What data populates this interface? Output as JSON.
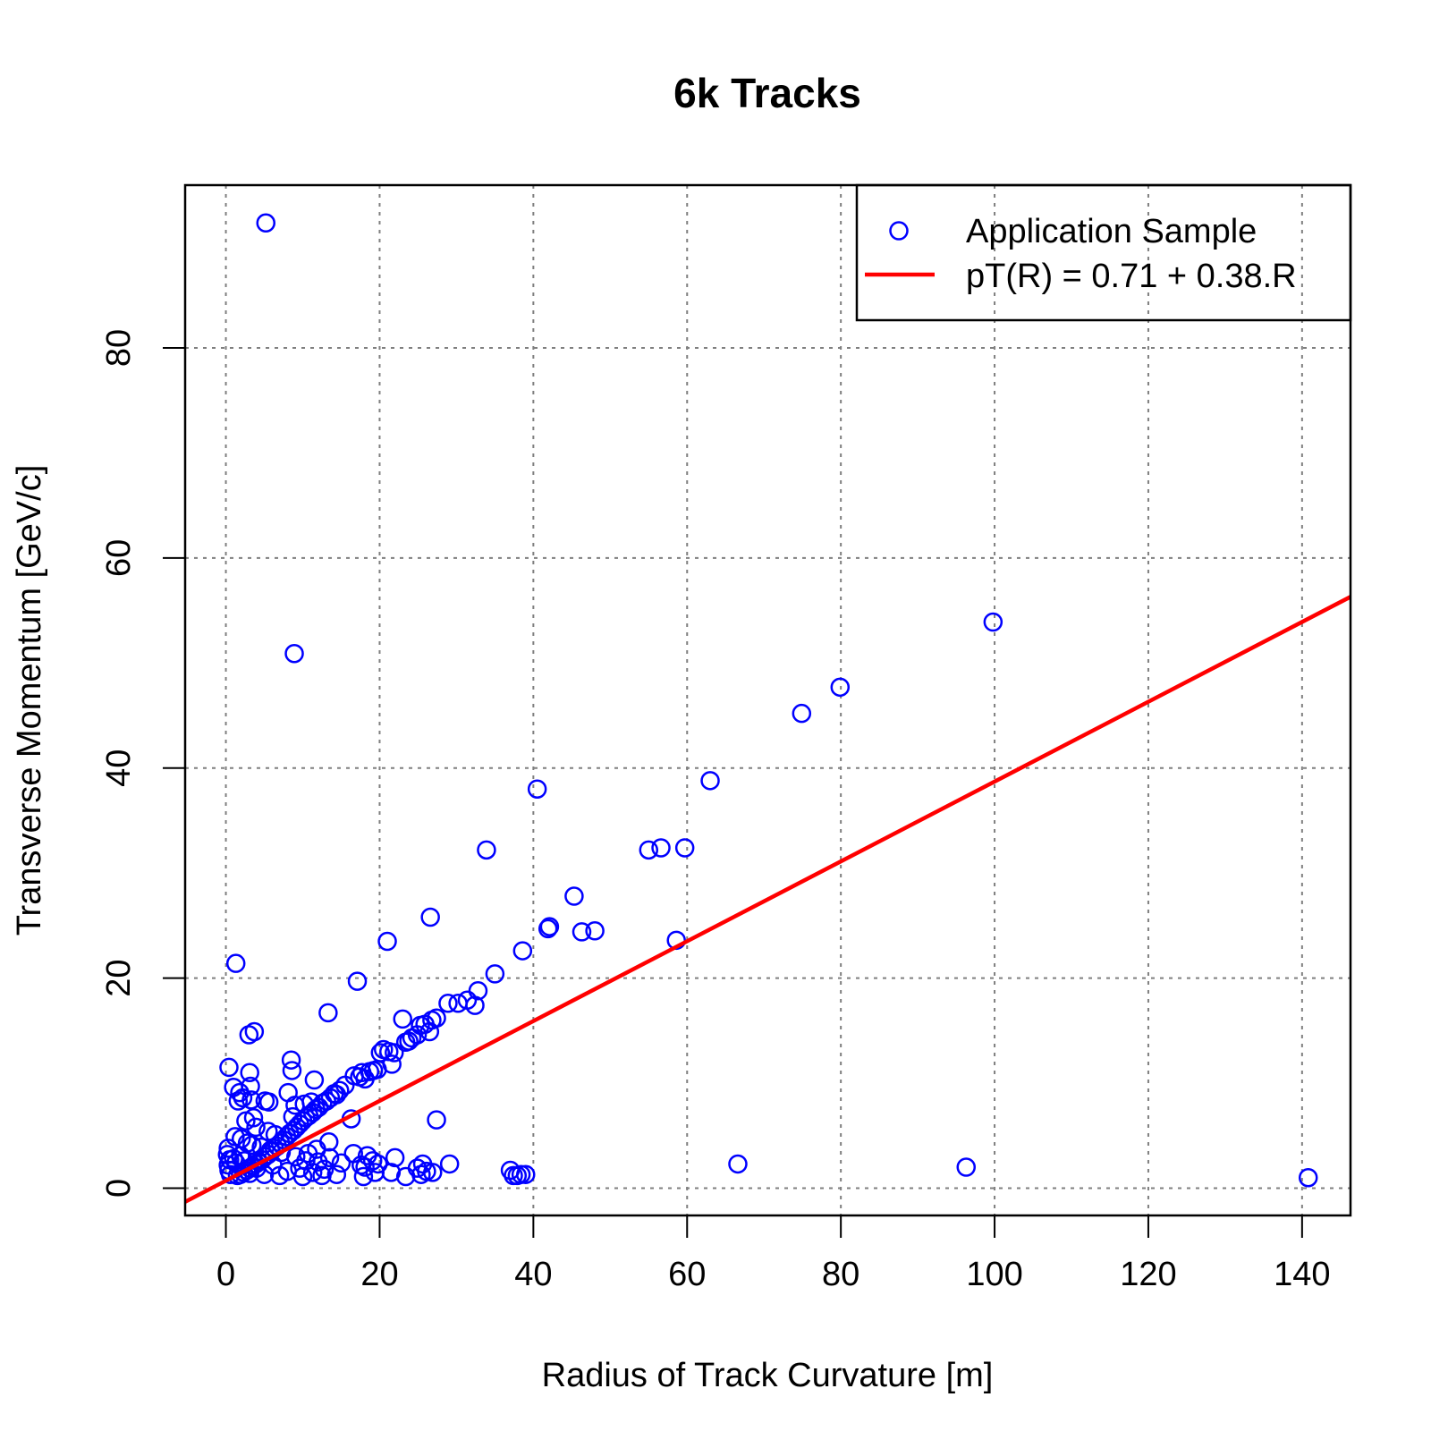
{
  "chart_data": {
    "type": "scatter",
    "title": "6k Tracks",
    "xlabel": "Radius of Track Curvature [m]",
    "ylabel": "Transverse Momentum [GeV/c]",
    "xlim": [
      -5.3,
      146.3
    ],
    "ylim": [
      -2.6,
      95.5
    ],
    "x_ticks": [
      0,
      20,
      40,
      60,
      80,
      100,
      120,
      140
    ],
    "y_ticks": [
      0,
      20,
      40,
      60,
      80
    ],
    "x_tick_labels": [
      "0",
      "20",
      "40",
      "60",
      "80",
      "100",
      "120",
      "140"
    ],
    "y_tick_labels": [
      "0",
      "20",
      "40",
      "60",
      "80"
    ],
    "grid": true,
    "legend_position": "top-right",
    "colors": {
      "points": "#0000ff",
      "fit": "#ff0000",
      "grid": "#7f7f7f"
    },
    "series": [
      {
        "name": "Application Sample",
        "kind": "points",
        "points": [
          [
            5.2,
            91.9
          ],
          [
            8.9,
            50.9
          ],
          [
            99.8,
            53.9
          ],
          [
            79.9,
            47.7
          ],
          [
            74.9,
            45.2
          ],
          [
            63.0,
            38.8
          ],
          [
            40.5,
            38.0
          ],
          [
            33.9,
            32.2
          ],
          [
            55.0,
            32.2
          ],
          [
            56.6,
            32.4
          ],
          [
            59.7,
            32.4
          ],
          [
            45.3,
            27.8
          ],
          [
            41.9,
            24.7
          ],
          [
            42.1,
            24.9
          ],
          [
            46.3,
            24.4
          ],
          [
            48.0,
            24.5
          ],
          [
            26.6,
            25.8
          ],
          [
            21.0,
            23.5
          ],
          [
            58.6,
            23.6
          ],
          [
            38.6,
            22.6
          ],
          [
            35.0,
            20.4
          ],
          [
            1.3,
            21.4
          ],
          [
            17.1,
            19.7
          ],
          [
            32.8,
            18.8
          ],
          [
            32.4,
            17.4
          ],
          [
            28.9,
            17.6
          ],
          [
            30.2,
            17.6
          ],
          [
            31.4,
            17.9
          ],
          [
            13.3,
            16.7
          ],
          [
            23.0,
            16.1
          ],
          [
            27.4,
            16.2
          ],
          [
            26.8,
            16.0
          ],
          [
            25.9,
            15.6
          ],
          [
            25.3,
            15.5
          ],
          [
            26.5,
            14.9
          ],
          [
            24.9,
            14.6
          ],
          [
            24.2,
            14.3
          ],
          [
            23.8,
            14.0
          ],
          [
            23.4,
            13.9
          ],
          [
            3.7,
            14.9
          ],
          [
            3.0,
            14.6
          ],
          [
            20.5,
            13.2
          ],
          [
            21.2,
            13.0
          ],
          [
            21.9,
            12.9
          ],
          [
            20.1,
            12.9
          ],
          [
            21.6,
            11.8
          ],
          [
            8.5,
            12.2
          ],
          [
            8.6,
            11.2
          ],
          [
            0.4,
            11.5
          ],
          [
            3.1,
            11.0
          ],
          [
            11.5,
            10.3
          ],
          [
            16.7,
            10.7
          ],
          [
            19.2,
            11.2
          ],
          [
            19.7,
            11.3
          ],
          [
            18.7,
            11.1
          ],
          [
            17.7,
            11.0
          ],
          [
            17.4,
            10.6
          ],
          [
            18.1,
            10.4
          ],
          [
            3.2,
            9.7
          ],
          [
            1.0,
            9.6
          ],
          [
            1.8,
            9.1
          ],
          [
            15.5,
            9.8
          ],
          [
            14.8,
            9.3
          ],
          [
            14.4,
            8.9
          ],
          [
            14.1,
            9.0
          ],
          [
            13.6,
            8.6
          ],
          [
            13.1,
            8.3
          ],
          [
            12.6,
            8.1
          ],
          [
            12.1,
            7.7
          ],
          [
            11.7,
            7.5
          ],
          [
            11.3,
            7.2
          ],
          [
            10.8,
            6.9
          ],
          [
            10.4,
            6.7
          ],
          [
            10.0,
            6.4
          ],
          [
            9.6,
            6.1
          ],
          [
            9.2,
            5.8
          ],
          [
            8.8,
            5.5
          ],
          [
            8.3,
            5.2
          ],
          [
            7.9,
            4.9
          ],
          [
            7.5,
            4.6
          ],
          [
            7.1,
            4.3
          ],
          [
            6.7,
            4.0
          ],
          [
            6.3,
            3.8
          ],
          [
            5.9,
            3.5
          ],
          [
            5.5,
            3.2
          ],
          [
            5.1,
            3.0
          ],
          [
            4.7,
            2.7
          ],
          [
            4.3,
            2.5
          ],
          [
            3.9,
            2.3
          ],
          [
            3.5,
            2.1
          ],
          [
            3.1,
            1.9
          ],
          [
            2.7,
            1.7
          ],
          [
            2.3,
            1.5
          ],
          [
            1.9,
            1.3
          ],
          [
            1.5,
            1.2
          ],
          [
            8.1,
            9.1
          ],
          [
            1.6,
            8.3
          ],
          [
            2.2,
            8.6
          ],
          [
            3.3,
            8.4
          ],
          [
            5.1,
            8.3
          ],
          [
            5.6,
            8.2
          ],
          [
            9.0,
            7.9
          ],
          [
            10.2,
            8.0
          ],
          [
            11.1,
            8.2
          ],
          [
            3.6,
            6.7
          ],
          [
            2.6,
            6.4
          ],
          [
            3.9,
            5.8
          ],
          [
            5.5,
            5.4
          ],
          [
            6.4,
            5.1
          ],
          [
            8.7,
            6.8
          ],
          [
            16.3,
            6.6
          ],
          [
            27.4,
            6.5
          ],
          [
            1.2,
            4.9
          ],
          [
            2.0,
            4.7
          ],
          [
            2.8,
            4.3
          ],
          [
            3.4,
            4.1
          ],
          [
            4.6,
            3.9
          ],
          [
            5.8,
            3.6
          ],
          [
            7.2,
            3.4
          ],
          [
            9.1,
            3.0
          ],
          [
            10.4,
            2.6
          ],
          [
            12.0,
            2.5
          ],
          [
            13.5,
            2.9
          ],
          [
            15.0,
            2.4
          ],
          [
            0.3,
            3.8
          ],
          [
            0.2,
            3.2
          ],
          [
            0.5,
            2.7
          ],
          [
            0.3,
            2.2
          ],
          [
            0.4,
            1.7
          ],
          [
            0.6,
            1.3
          ],
          [
            1.0,
            2.8
          ],
          [
            1.3,
            2.4
          ],
          [
            1.9,
            3.1
          ],
          [
            2.4,
            2.6
          ],
          [
            4.0,
            1.9
          ],
          [
            6.1,
            2.2
          ],
          [
            8.0,
            1.6
          ],
          [
            9.6,
            1.9
          ],
          [
            11.3,
            1.5
          ],
          [
            12.8,
            1.8
          ],
          [
            3.1,
            1.4
          ],
          [
            5.0,
            1.3
          ],
          [
            7.0,
            1.2
          ],
          [
            10.0,
            1.1
          ],
          [
            12.5,
            1.2
          ],
          [
            14.4,
            1.3
          ],
          [
            13.4,
            4.4
          ],
          [
            11.8,
            3.7
          ],
          [
            10.7,
            3.3
          ],
          [
            16.6,
            3.3
          ],
          [
            18.4,
            3.1
          ],
          [
            18.1,
            2.0
          ],
          [
            17.6,
            2.2
          ],
          [
            19.1,
            2.6
          ],
          [
            19.8,
            2.3
          ],
          [
            17.9,
            1.1
          ],
          [
            19.4,
            1.5
          ],
          [
            21.5,
            1.5
          ],
          [
            22.0,
            2.9
          ],
          [
            23.4,
            1.1
          ],
          [
            24.9,
            1.9
          ],
          [
            25.6,
            2.3
          ],
          [
            25.4,
            1.3
          ],
          [
            26.1,
            1.6
          ],
          [
            26.9,
            1.5
          ],
          [
            29.1,
            2.3
          ],
          [
            37.0,
            1.7
          ],
          [
            37.4,
            1.2
          ],
          [
            37.9,
            1.2
          ],
          [
            38.4,
            1.3
          ],
          [
            39.0,
            1.3
          ],
          [
            66.6,
            2.3
          ],
          [
            96.3,
            2.0
          ],
          [
            140.8,
            1.0
          ]
        ]
      },
      {
        "name": "pT(R) = 0.71 + 0.38.R",
        "kind": "line",
        "intercept": 0.71,
        "slope": 0.38
      }
    ]
  }
}
